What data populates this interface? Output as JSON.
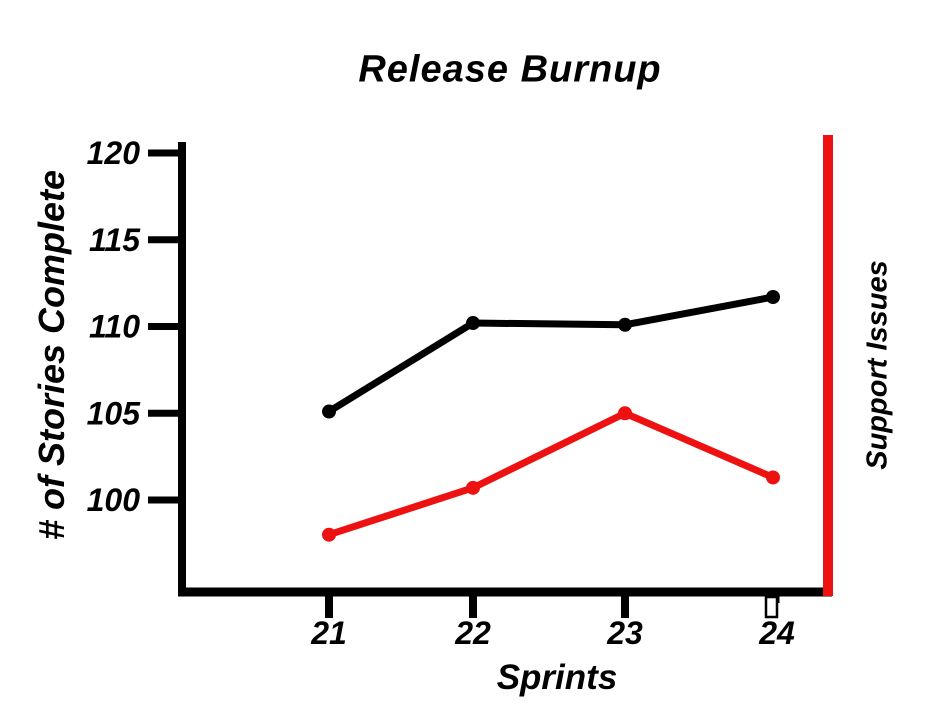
{
  "chart_data": {
    "type": "line",
    "title": "Release Burnup",
    "xlabel": "Sprints",
    "ylabel": "# of Stories Complete",
    "right_axis_label": "Support Issues",
    "grid": false,
    "legend_position": "none",
    "categories": [
      21,
      22,
      23,
      24
    ],
    "x_ticks": [
      {
        "label": "21",
        "style": "solid"
      },
      {
        "label": "22",
        "style": "solid"
      },
      {
        "label": "23",
        "style": "solid"
      },
      {
        "label": "24",
        "style": "hollow"
      }
    ],
    "y_ticks": [
      {
        "label": "120",
        "value": 120
      },
      {
        "label": "115",
        "value": 115
      },
      {
        "label": "110",
        "value": 110
      },
      {
        "label": "105",
        "value": 105
      },
      {
        "label": "100",
        "value": 100
      }
    ],
    "ylim": [
      94.7,
      120.6
    ],
    "series": [
      {
        "name": "# of Stories Complete",
        "axis": "left",
        "color": "#000000",
        "values": [
          105.1,
          110.2,
          110.1,
          111.7
        ]
      },
      {
        "name": "Support Issues",
        "axis": "right",
        "color": "#ee1111",
        "values": [
          98.0,
          100.7,
          105.0,
          101.3
        ]
      }
    ],
    "colors": {
      "stories": "#000000",
      "support": "#ee1111",
      "background": "#ffffff"
    }
  }
}
